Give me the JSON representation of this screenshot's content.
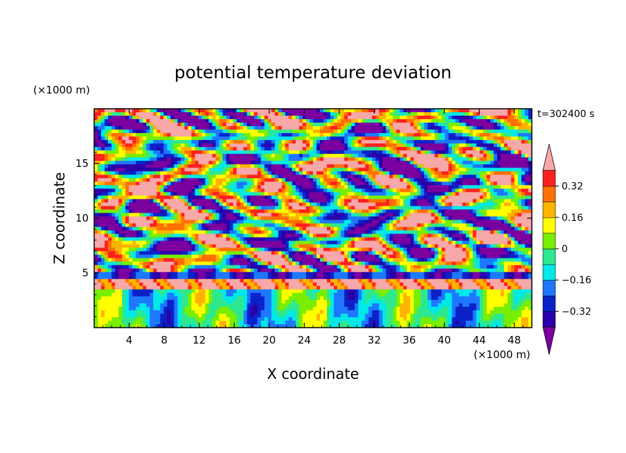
{
  "chart_data": {
    "type": "heatmap",
    "title": "potential temperature deviation",
    "time_label": "t=302400 s",
    "xlabel": "X coordinate",
    "ylabel": "Z coordinate",
    "x_unit": "(×1000 m)",
    "y_unit": "(×1000 m)",
    "xlim": [
      0,
      50
    ],
    "ylim": [
      0,
      20
    ],
    "x_ticks": [
      4,
      8,
      12,
      16,
      20,
      24,
      28,
      32,
      36,
      40,
      44,
      48
    ],
    "y_ticks": [
      5,
      10,
      15
    ],
    "colorbar": {
      "levels": [
        -0.4,
        -0.32,
        -0.24,
        -0.16,
        -0.08,
        0,
        0.08,
        0.16,
        0.24,
        0.32,
        0.4
      ],
      "tick_labels": [
        "0.32",
        "0.16",
        "0",
        "−0.16",
        "−0.32"
      ],
      "tick_values": [
        0.32,
        0.16,
        0,
        -0.16,
        -0.32
      ],
      "colors": [
        "#7a00a0",
        "#2c00a8",
        "#0a22c8",
        "#1e78ff",
        "#00e8e8",
        "#2ee890",
        "#78ee00",
        "#ffff00",
        "#ffb400",
        "#ff7000",
        "#ff2020",
        "#f7a8a8"
      ],
      "extend": "both"
    }
  }
}
